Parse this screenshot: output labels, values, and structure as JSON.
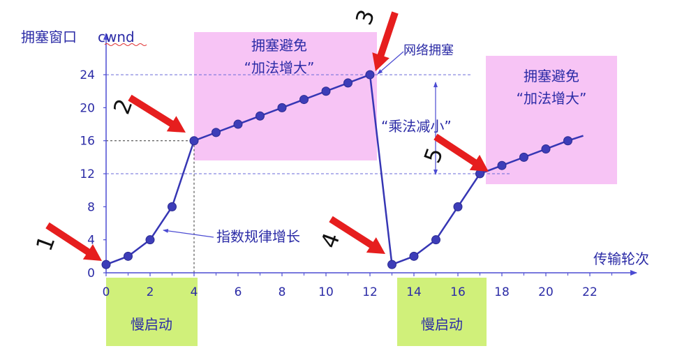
{
  "chart_data": {
    "type": "line",
    "ylabel": "拥塞窗口",
    "ylabel_unit": "cwnd",
    "xlabel": "传输轮次",
    "x_ticks": [
      0,
      2,
      4,
      6,
      8,
      10,
      12,
      14,
      16,
      18,
      20,
      22
    ],
    "y_ticks": [
      0,
      4,
      8,
      12,
      16,
      20,
      24
    ],
    "xlim": [
      0,
      23.5
    ],
    "ylim": [
      0,
      26
    ],
    "series": [
      {
        "x": [
          0,
          1,
          2,
          3,
          4,
          5,
          6,
          7,
          8,
          9,
          10,
          11,
          12,
          13,
          14,
          15,
          16,
          17,
          18,
          19,
          20,
          21
        ],
        "y": [
          1,
          2,
          4,
          8,
          16,
          17,
          18,
          19,
          20,
          21,
          22,
          23,
          24,
          1,
          2,
          4,
          8,
          12,
          13,
          14,
          15,
          16
        ],
        "tail": [
          21,
          16.6
        ]
      }
    ],
    "reference_levels": [
      24,
      16,
      12
    ],
    "region_labels": {
      "congestion_avoidance_1": [
        "拥塞避免",
        "“加法增大”"
      ],
      "congestion_avoidance_2": [
        "拥塞避免",
        "“加法增大”"
      ],
      "slow_start_1": "慢启动",
      "slow_start_2": "慢启动"
    },
    "annotations": {
      "congestion": "网络拥塞",
      "multiplicative_decrease": "“乘法减小”",
      "exponential_growth": "指数规律增长"
    },
    "markers": [
      "1",
      "2",
      "3",
      "4",
      "5"
    ],
    "colors": {
      "line": "#3636b4",
      "axis": "#4b4bd2",
      "text": "#2b2ba6",
      "arrow": "#e61e1e",
      "pink": "#f7c4f5",
      "green": "#d0f07a"
    }
  }
}
